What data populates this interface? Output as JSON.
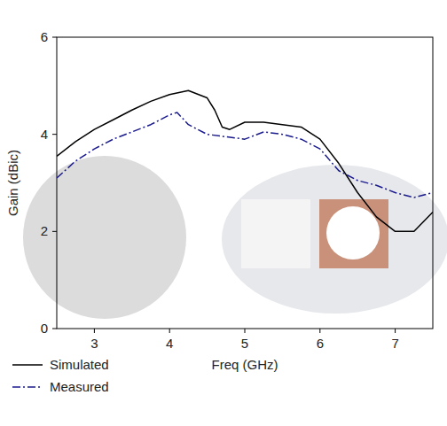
{
  "chart_data": {
    "type": "line",
    "x_label": "Freq (GHz)",
    "y_label": "Gain (dBic)",
    "xlim": [
      2.5,
      7.5
    ],
    "xticks": [
      3,
      4,
      5,
      6,
      7
    ],
    "ylim": [
      0,
      6
    ],
    "yticks": [
      0,
      2,
      4,
      6
    ],
    "grid": false,
    "legend": "bottom-left",
    "series": [
      {
        "name": "Simulated",
        "color": "#000000",
        "line_style": "solid",
        "x": [
          2.5,
          2.75,
          3,
          3.25,
          3.5,
          3.75,
          4,
          4.25,
          4.5,
          4.6,
          4.7,
          4.8,
          5,
          5.25,
          5.5,
          5.75,
          6,
          6.25,
          6.5,
          6.75,
          7,
          7.25,
          7.5
        ],
        "values": [
          3.55,
          3.85,
          4.1,
          4.3,
          4.5,
          4.68,
          4.82,
          4.9,
          4.75,
          4.5,
          4.15,
          4.1,
          4.25,
          4.25,
          4.2,
          4.15,
          3.9,
          3.4,
          2.8,
          2.3,
          2.0,
          2.0,
          2.4
        ]
      },
      {
        "name": "Measured",
        "color": "#1a1a8c",
        "line_style": "dashdot",
        "x": [
          2.5,
          2.75,
          3,
          3.25,
          3.5,
          3.75,
          4,
          4.1,
          4.25,
          4.5,
          4.75,
          5,
          5.25,
          5.5,
          5.75,
          6,
          6.25,
          6.5,
          6.75,
          7,
          7.25,
          7.5
        ],
        "values": [
          3.1,
          3.45,
          3.7,
          3.9,
          4.05,
          4.2,
          4.4,
          4.45,
          4.2,
          4.0,
          3.95,
          3.9,
          4.05,
          4.0,
          3.9,
          3.7,
          3.25,
          3.05,
          2.95,
          2.8,
          2.7,
          2.8
        ]
      }
    ]
  }
}
